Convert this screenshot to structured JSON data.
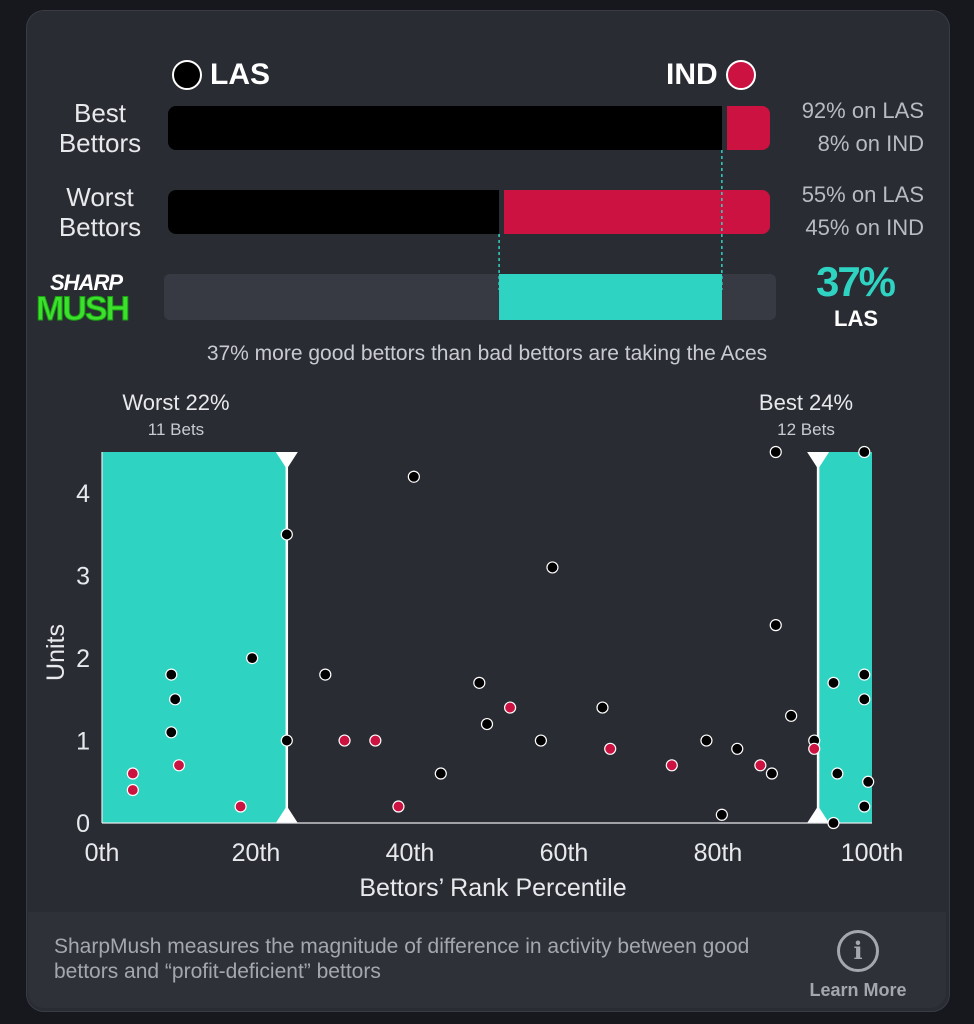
{
  "teams": {
    "left": {
      "name": "LAS",
      "color": "#000000"
    },
    "right": {
      "name": "IND",
      "color": "#cc1240"
    }
  },
  "rows": [
    {
      "label_line1": "Best",
      "label_line2": "Bettors",
      "las_pct": 92,
      "ind_pct": 8,
      "las_text": "92% on LAS",
      "ind_text": "8% on IND"
    },
    {
      "label_line1": "Worst",
      "label_line2": "Bettors",
      "las_pct": 55,
      "ind_pct": 45,
      "las_text": "55% on LAS",
      "ind_text": "45% on IND"
    }
  ],
  "sharpmush": {
    "logo_line1": "SHARP",
    "logo_line2": "MUSH",
    "value_text": "37%",
    "team": "LAS",
    "from_pct": 55,
    "to_pct": 92,
    "accent": "#2fd3c2",
    "summary": "37% more good bettors than bad bettors are taking the Aces"
  },
  "zones": {
    "worst": {
      "title": "Worst 22%",
      "sub": "11 Bets",
      "from": 0,
      "to": 24
    },
    "best": {
      "title": "Best 24%",
      "sub": "12 Bets",
      "from": 93,
      "to": 100
    }
  },
  "chart_data": {
    "type": "scatter",
    "xlabel": "Bettors’ Rank Percentile",
    "ylabel": "Units",
    "xlim": [
      0,
      100
    ],
    "ylim": [
      0,
      4.5
    ],
    "xticks": [
      0,
      20,
      40,
      60,
      80,
      100
    ],
    "xtick_labels": [
      "0th",
      "20th",
      "40th",
      "60th",
      "80th",
      "100th"
    ],
    "yticks": [
      0,
      1,
      2,
      3,
      4
    ],
    "ytick_labels": [
      "0",
      "1",
      "2",
      "3",
      "4"
    ],
    "grid": false,
    "series": [
      {
        "name": "LAS",
        "color": "#000000",
        "points": [
          [
            9,
            1.8
          ],
          [
            9.5,
            1.5
          ],
          [
            9,
            1.1
          ],
          [
            19.5,
            2.0
          ],
          [
            24,
            3.5
          ],
          [
            24,
            1.0
          ],
          [
            29,
            1.8
          ],
          [
            40.5,
            4.2
          ],
          [
            44,
            0.6
          ],
          [
            49,
            1.7
          ],
          [
            50,
            1.2
          ],
          [
            57,
            1.0
          ],
          [
            58.5,
            3.1
          ],
          [
            65,
            1.4
          ],
          [
            78.5,
            1.0
          ],
          [
            80.5,
            0.1
          ],
          [
            82.5,
            0.9
          ],
          [
            87,
            0.6
          ],
          [
            87.5,
            4.5
          ],
          [
            87.5,
            2.4
          ],
          [
            89.5,
            1.3
          ],
          [
            92.5,
            1.0
          ],
          [
            95,
            1.7
          ],
          [
            95.5,
            0.6
          ],
          [
            95,
            0.0
          ],
          [
            99,
            4.5
          ],
          [
            99,
            1.8
          ],
          [
            99,
            1.5
          ],
          [
            99.5,
            0.5
          ],
          [
            99,
            0.2
          ]
        ]
      },
      {
        "name": "IND",
        "color": "#cc1240",
        "points": [
          [
            4,
            0.6
          ],
          [
            4,
            0.4
          ],
          [
            10,
            0.7
          ],
          [
            18,
            0.2
          ],
          [
            31.5,
            1.0
          ],
          [
            35.5,
            1.0
          ],
          [
            38.5,
            0.2
          ],
          [
            53,
            1.4
          ],
          [
            66,
            0.9
          ],
          [
            74,
            0.7
          ],
          [
            85.5,
            0.7
          ],
          [
            92.5,
            0.9
          ]
        ]
      }
    ]
  },
  "footer": {
    "text": "SharpMush measures the magnitude of difference in activity between good bettors and “profit-deficient” bettors",
    "learn_more": "Learn More",
    "info_icon": "i"
  }
}
